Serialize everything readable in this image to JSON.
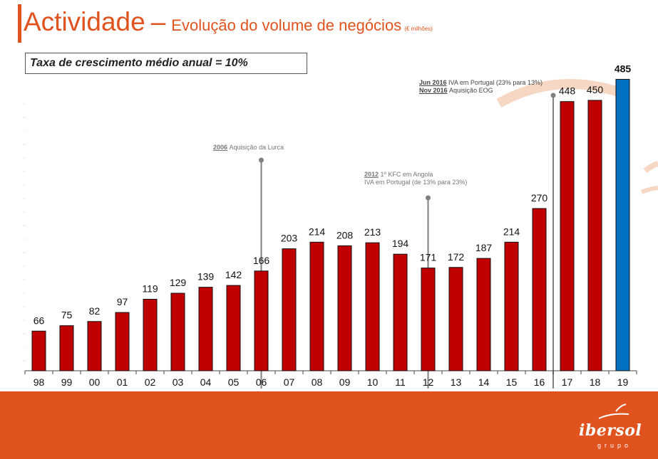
{
  "header": {
    "title_main": "Actividade",
    "title_dash": "–",
    "title_sub": "Evolução do volume de negócios",
    "title_unit": "(€ milhões)"
  },
  "growth_box": "Taxa de crescimento médio anual = 10%",
  "annotations": [
    {
      "year_label": "2006",
      "text": "Aquisição da Lurca"
    },
    {
      "year_label": "2012",
      "text": "1º KFC em Angola",
      "text2": "IVA em Portugal (de 13% para 23%)"
    },
    {
      "year_label": "Jun 2016",
      "text": "IVA em Portugal (23% para 13%)",
      "year_label2": "Nov 2016",
      "text2": "Aquisição EOG"
    }
  ],
  "logo": {
    "word": "ibersol",
    "sub": "grupo"
  },
  "colors": {
    "accent": "#e0531e",
    "bar": "#c00000",
    "highlight_bar": "#0070c0"
  },
  "chart_data": {
    "type": "bar",
    "title": "Evolução do volume de negócios (€ milhões)",
    "categories": [
      "98",
      "99",
      "00",
      "01",
      "02",
      "03",
      "04",
      "05",
      "06",
      "07",
      "08",
      "09",
      "10",
      "11",
      "12",
      "13",
      "14",
      "15",
      "16",
      "17",
      "18",
      "19"
    ],
    "values": [
      66,
      75,
      82,
      97,
      119,
      129,
      139,
      142,
      166,
      203,
      214,
      208,
      213,
      194,
      171,
      172,
      187,
      214,
      270,
      448,
      450,
      485
    ],
    "highlight_index": 21,
    "ylim": [
      0,
      540
    ],
    "xlabel": "",
    "ylabel": ""
  }
}
